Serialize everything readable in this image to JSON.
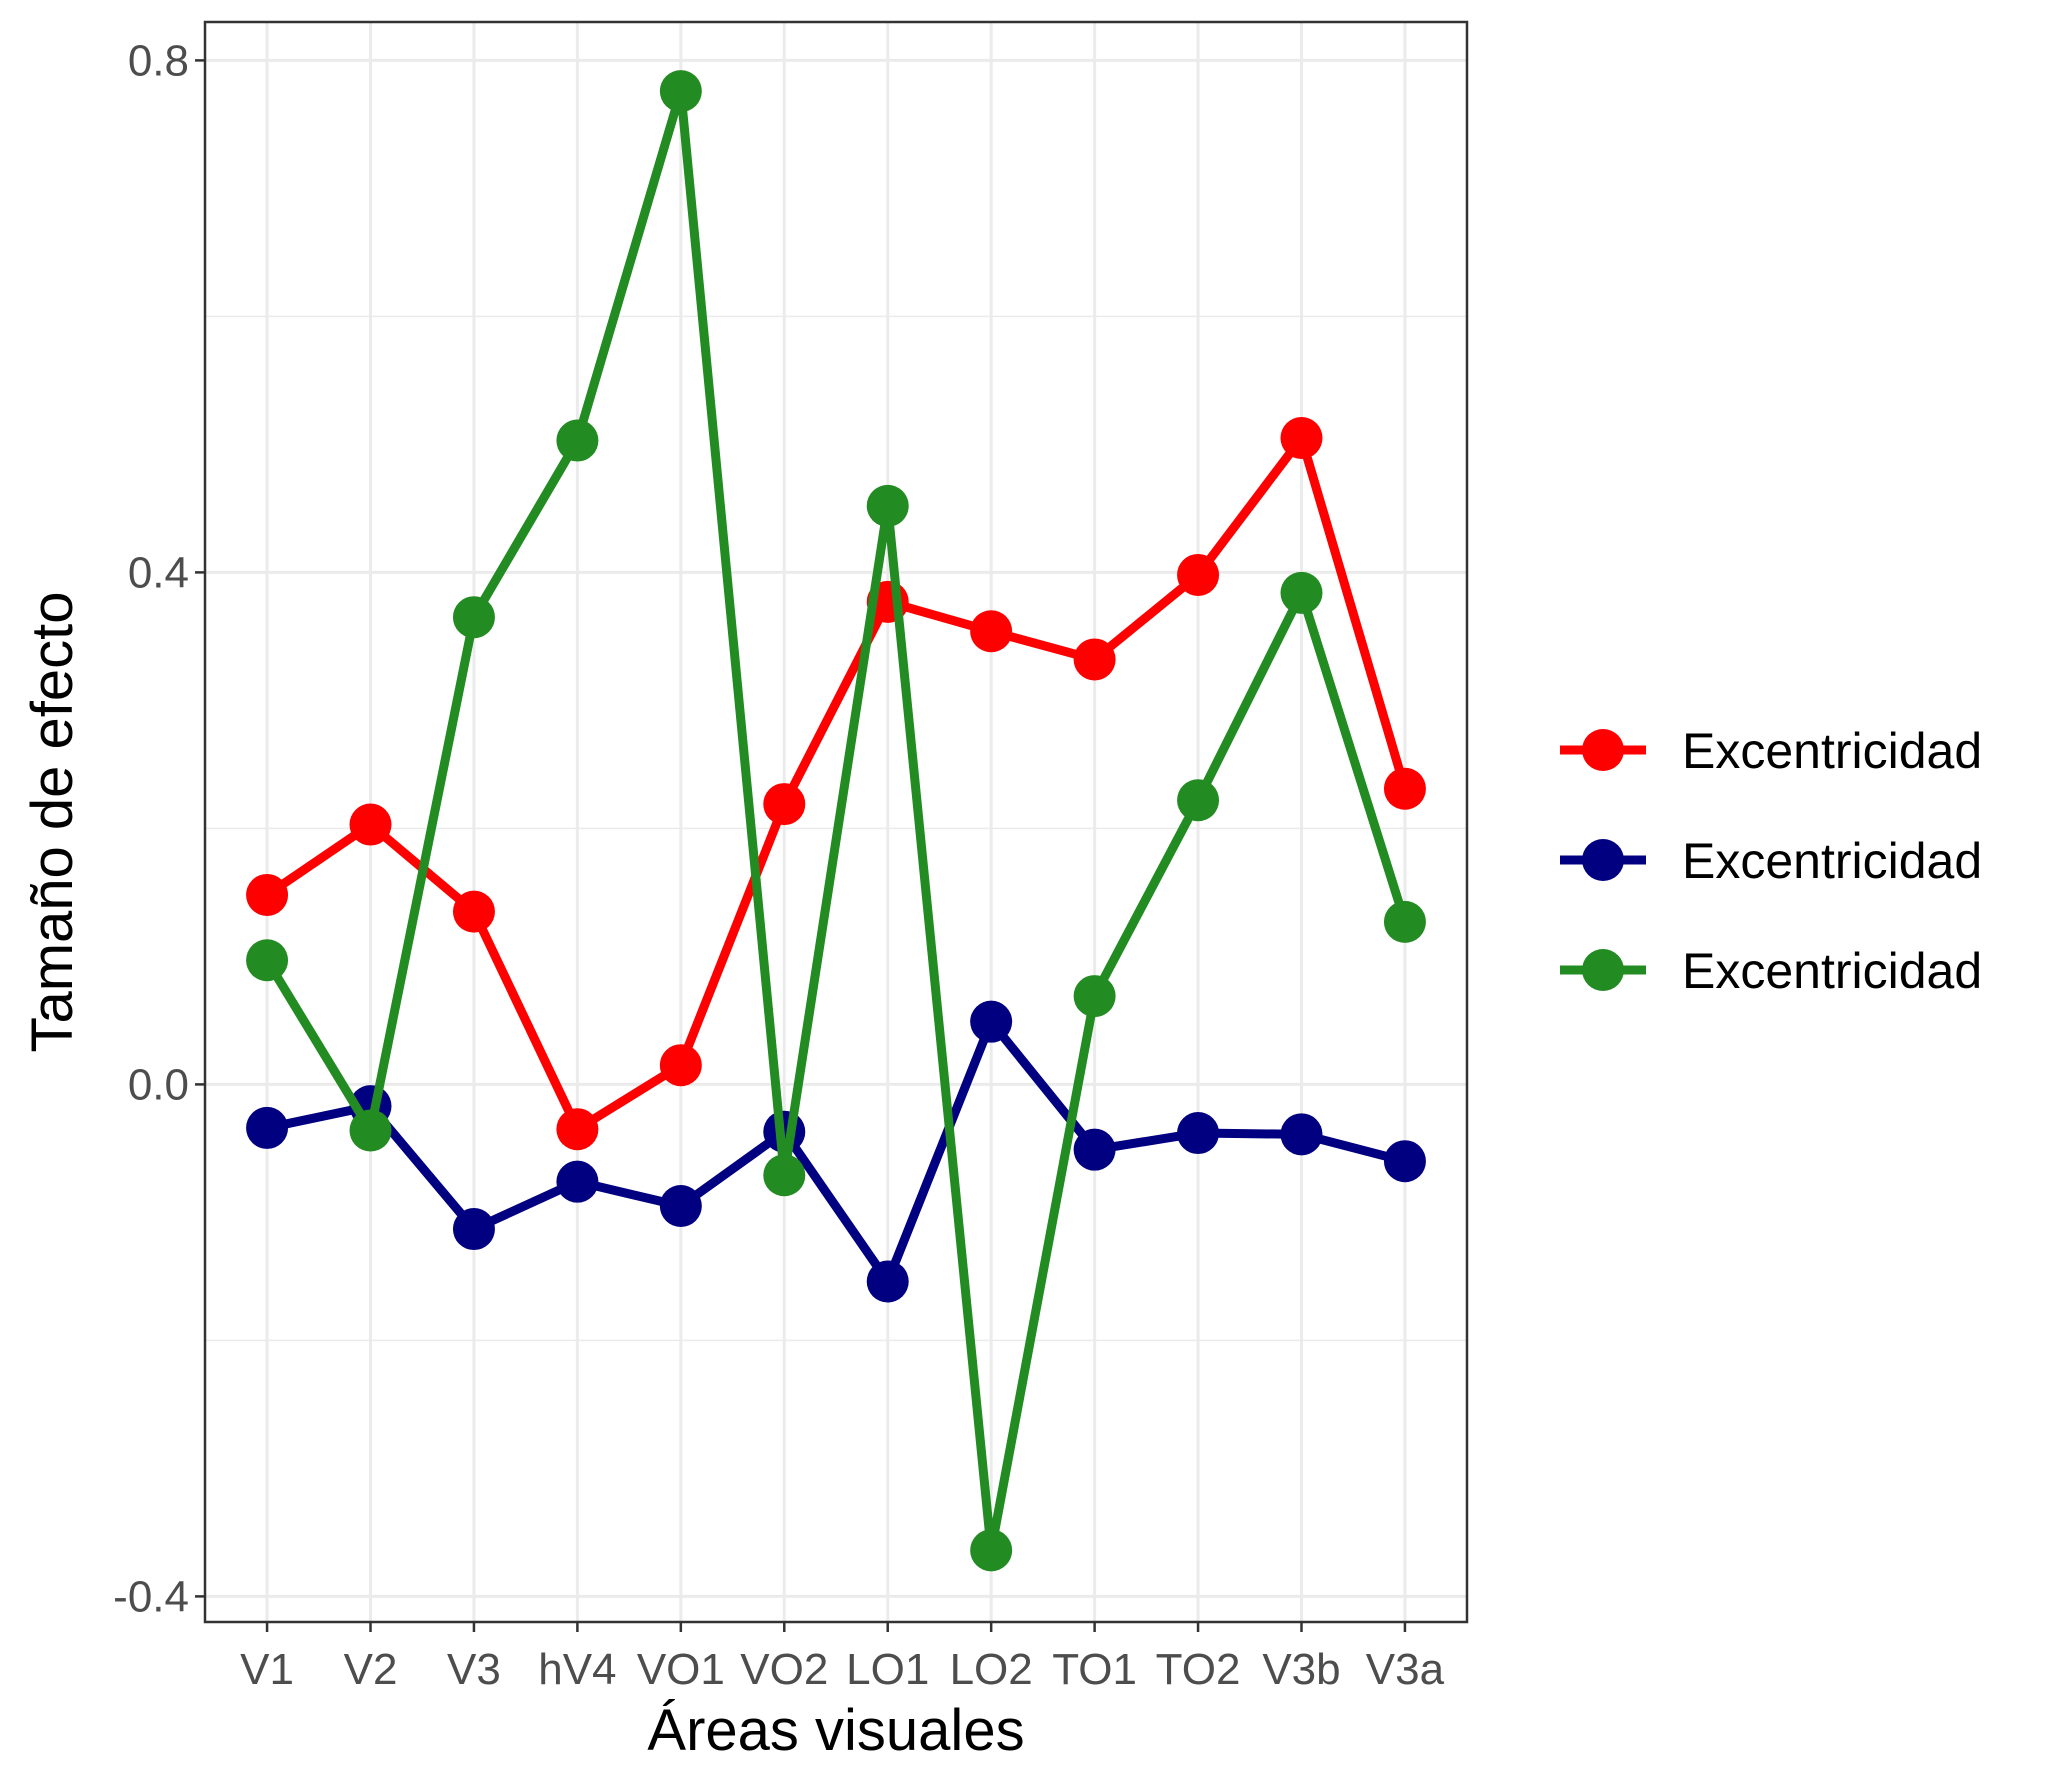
{
  "chart_data": {
    "type": "line",
    "title": "",
    "xlabel": "Áreas visuales",
    "ylabel": "Tamaño de efecto",
    "categories": [
      "V1",
      "V2",
      "V3",
      "hV4",
      "VO1",
      "VO2",
      "LO1",
      "LO2",
      "TO1",
      "TO2",
      "V3b",
      "V3a"
    ],
    "ylim": [
      -0.42,
      0.83
    ],
    "yticks": [
      -0.4,
      0.0,
      0.4,
      0.8
    ],
    "ytick_labels": [
      "-0.4",
      "0.0",
      "0.4",
      "0.8"
    ],
    "grid": true,
    "legend_position": "right",
    "series": [
      {
        "name": "Excentricidad",
        "color": "#ff0000",
        "values": [
          0.148,
          0.203,
          0.135,
          -0.035,
          0.015,
          0.219,
          0.377,
          0.354,
          0.332,
          0.398,
          0.505,
          0.231
        ]
      },
      {
        "name": "Excentricidad",
        "color": "#000080",
        "values": [
          -0.034,
          -0.017,
          -0.113,
          -0.076,
          -0.095,
          -0.037,
          -0.154,
          0.049,
          -0.051,
          -0.038,
          -0.039,
          -0.06
        ]
      },
      {
        "name": "Excentricidad",
        "color": "#228b22",
        "values": [
          0.097,
          -0.036,
          0.365,
          0.503,
          0.776,
          -0.071,
          0.452,
          -0.364,
          0.069,
          0.222,
          0.384,
          0.127
        ]
      }
    ]
  }
}
